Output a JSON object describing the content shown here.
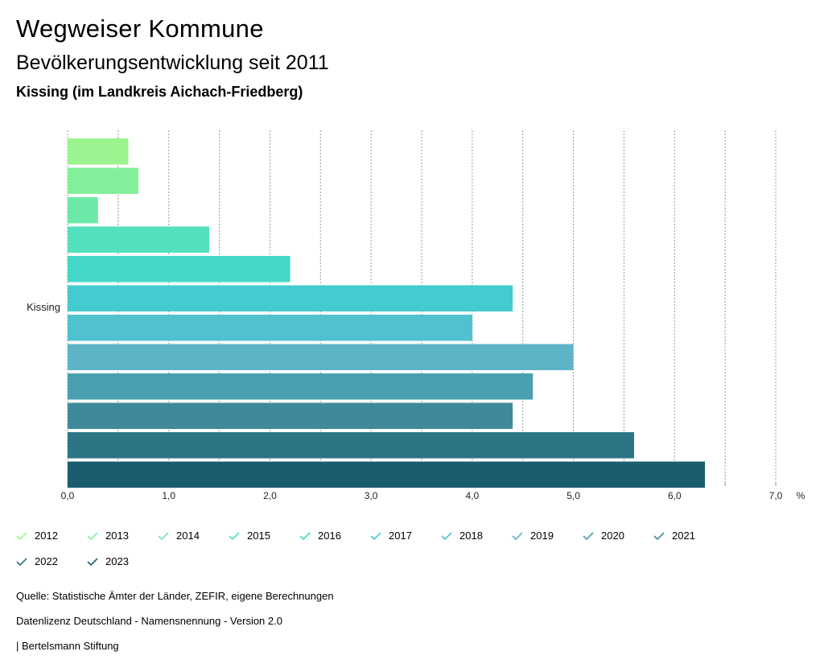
{
  "header": {
    "title": "Wegweiser Kommune",
    "subtitle": "Bevölkerungsentwicklung seit 2011",
    "region": "Kissing (im Landkreis Aichach-Friedberg)"
  },
  "chart_data": {
    "type": "bar",
    "orientation": "horizontal",
    "categories": [
      "Kissing"
    ],
    "series": [
      {
        "name": "2012",
        "values": [
          0.6
        ],
        "color": "#9bf48f"
      },
      {
        "name": "2013",
        "values": [
          0.7
        ],
        "color": "#84ef9a"
      },
      {
        "name": "2014",
        "values": [
          0.3
        ],
        "color": "#6ce8a8"
      },
      {
        "name": "2015",
        "values": [
          1.4
        ],
        "color": "#52e0bd"
      },
      {
        "name": "2016",
        "values": [
          2.2
        ],
        "color": "#42d7c9"
      },
      {
        "name": "2017",
        "values": [
          4.4
        ],
        "color": "#43cbcf"
      },
      {
        "name": "2018",
        "values": [
          4.0
        ],
        "color": "#4fc1cf"
      },
      {
        "name": "2019",
        "values": [
          5.0
        ],
        "color": "#5eb4c7"
      },
      {
        "name": "2020",
        "values": [
          4.6
        ],
        "color": "#4a9fb1"
      },
      {
        "name": "2021",
        "values": [
          4.4
        ],
        "color": "#3e8a9b"
      },
      {
        "name": "2022",
        "values": [
          5.6
        ],
        "color": "#2b7585"
      },
      {
        "name": "2023",
        "values": [
          6.3
        ],
        "color": "#1a5e6e"
      }
    ],
    "xlim": [
      0,
      7
    ],
    "xticks": [
      "0,0",
      "1,0",
      "2,0",
      "3,0",
      "4,0",
      "5,0",
      "6,0",
      "7,0"
    ],
    "xunit": "%",
    "grid": true,
    "legend_position": "bottom"
  },
  "footer": {
    "source": "Quelle: Statistische Ämter der Länder, ZEFIR, eigene Berechnungen",
    "license": "Datenlizenz Deutschland - Namensnennung - Version 2.0",
    "credit": "| Bertelsmann Stiftung"
  }
}
